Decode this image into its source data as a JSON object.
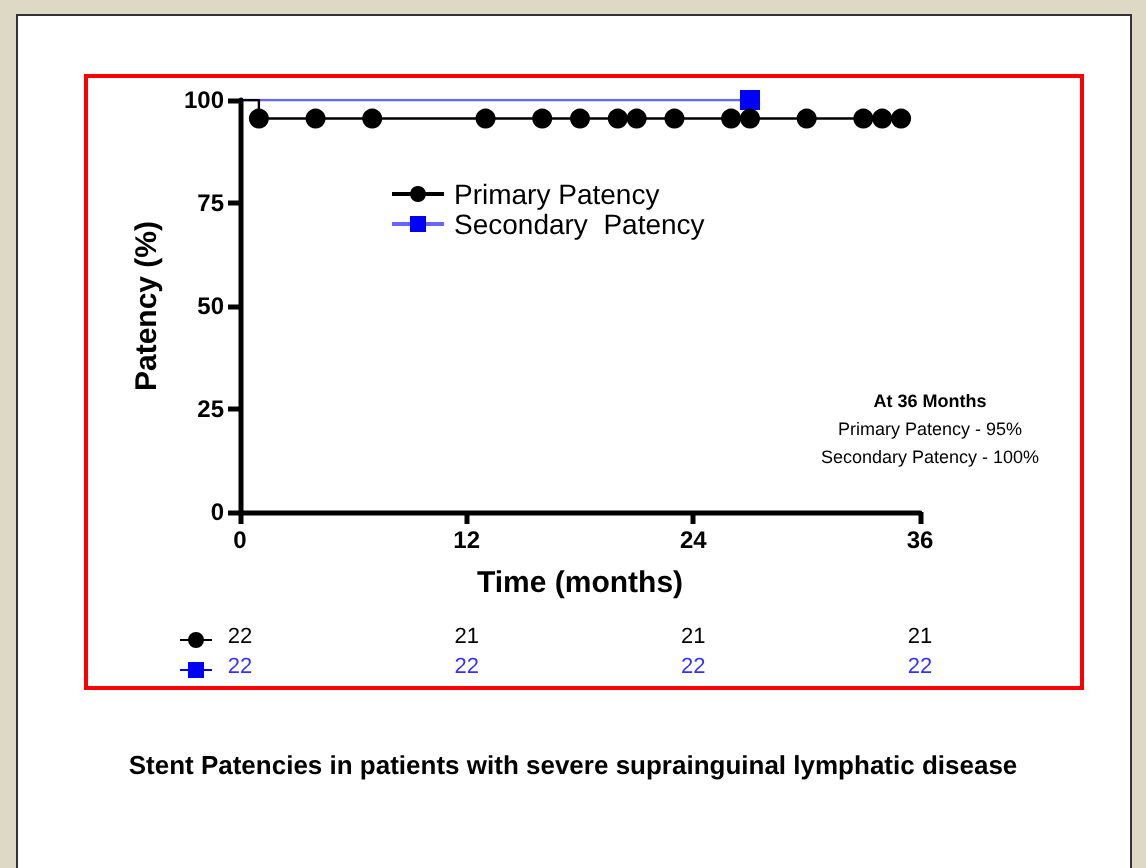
{
  "chart_data": {
    "type": "step",
    "title": "Stent Patencies in patients with severe suprainguinal lymphatic disease",
    "xlabel": "Time (months)",
    "ylabel": "Patency (%)",
    "xlim": [
      0,
      36
    ],
    "xticks": [
      0,
      12,
      24,
      36
    ],
    "ylim": [
      0,
      100
    ],
    "yticks": [
      0,
      25,
      50,
      75,
      100
    ],
    "grid": false,
    "legend": "top left",
    "series": [
      {
        "name": "Primary Patency",
        "color": "#000000",
        "marker": "circle",
        "x": [
          0,
          1,
          4,
          7,
          13,
          16,
          18,
          20,
          21,
          23,
          26,
          27,
          30,
          33,
          34,
          35
        ],
        "values": [
          100,
          95.5,
          95.5,
          95.5,
          95.5,
          95.5,
          95.5,
          95.5,
          95.5,
          95.5,
          95.5,
          95.5,
          95.5,
          95.5,
          95.5,
          95.5
        ]
      },
      {
        "name": "Secondary  Patency",
        "color": "#0000ff",
        "marker": "square",
        "x": [
          0,
          27
        ],
        "values": [
          100,
          100
        ]
      }
    ],
    "annotations": [
      "At 36 Months",
      "Primary Patency - 95%",
      "Secondary Patency - 100%",
      "22",
      "21",
      "21",
      "21",
      "22",
      "22",
      "22",
      "22"
    ]
  }
}
